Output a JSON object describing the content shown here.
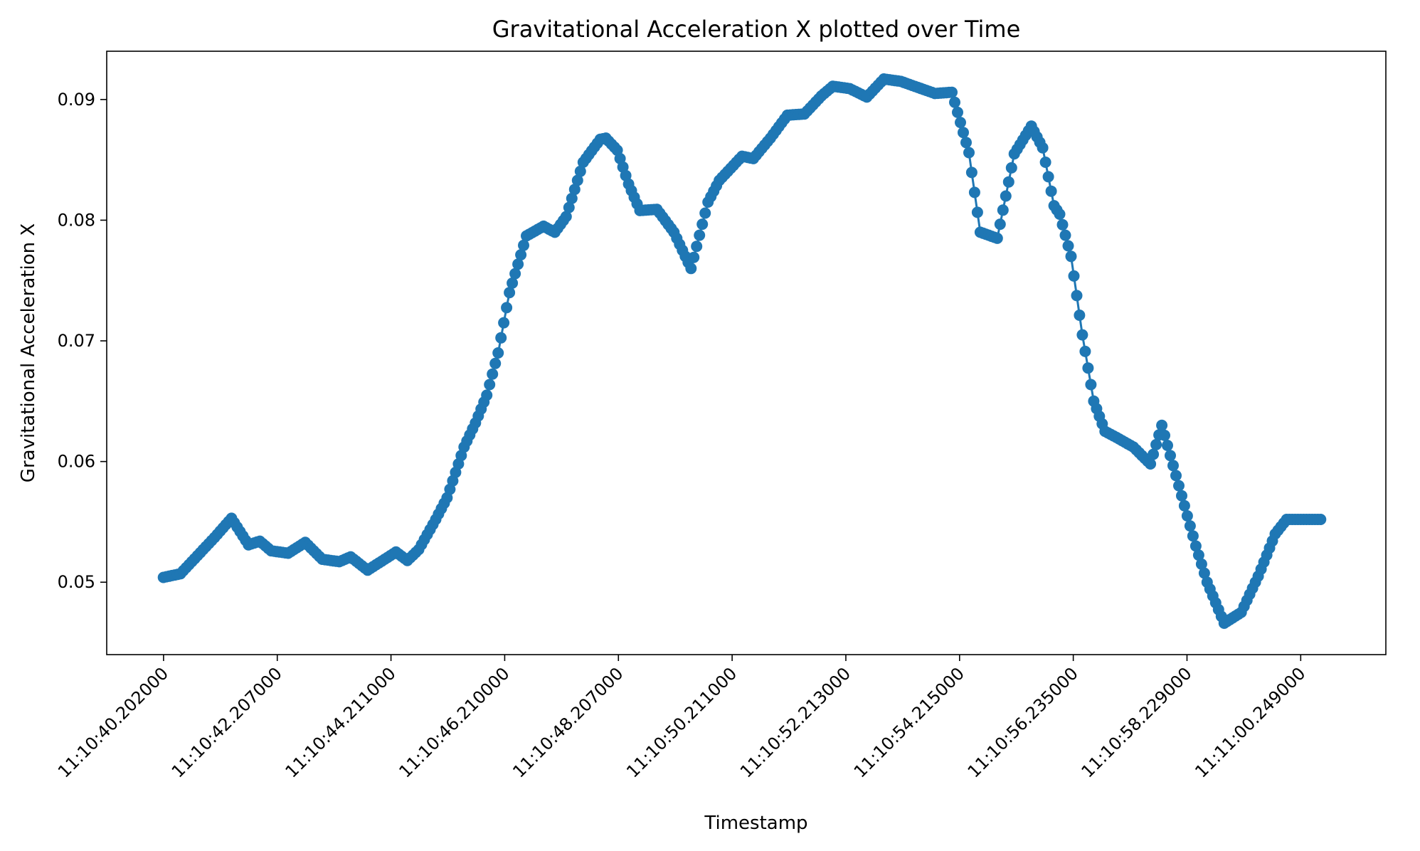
{
  "chart_data": {
    "type": "line",
    "title": "Gravitational Acceleration X plotted over Time",
    "xlabel": "Timestamp",
    "ylabel": "Gravitational Acceleration X",
    "x_ticks": [
      "11:10:40.202000",
      "11:10:42.207000",
      "11:10:44.211000",
      "11:10:46.210000",
      "11:10:48.207000",
      "11:10:50.211000",
      "11:10:52.213000",
      "11:10:54.215000",
      "11:10:56.235000",
      "11:10:58.229000",
      "11:11:00.249000"
    ],
    "y_ticks": [
      "0.05",
      "0.06",
      "0.07",
      "0.08",
      "0.09"
    ],
    "y_tick_values": [
      0.05,
      0.06,
      0.07,
      0.08,
      0.09
    ],
    "xlim_seconds": [
      39.2,
      61.75
    ],
    "ylim": [
      0.044,
      0.094
    ],
    "x_range_start": "11:10:40.202000",
    "x_range_end": "11:11:00.750000",
    "grid": false,
    "legend": "none",
    "markers": true,
    "series": [
      {
        "color": "#1f77b4",
        "x_seconds": [
          40.2,
          40.5,
          40.8,
          41.1,
          41.4,
          41.7,
          41.9,
          42.1,
          42.4,
          42.7,
          43.0,
          43.3,
          43.5,
          43.8,
          44.1,
          44.3,
          44.5,
          44.7,
          45.0,
          45.2,
          45.5,
          45.7,
          45.9,
          46.1,
          46.3,
          46.6,
          46.9,
          47.1,
          47.3,
          47.6,
          47.9,
          48.0,
          48.2,
          48.4,
          48.6,
          48.9,
          49.2,
          49.5,
          49.8,
          50.0,
          50.2,
          50.4,
          50.6,
          50.9,
          51.2,
          51.5,
          51.8,
          52.0,
          52.3,
          52.6,
          52.9,
          53.2,
          53.5,
          53.8,
          54.1,
          54.4,
          54.6,
          54.9,
          55.2,
          55.5,
          55.7,
          55.9,
          56.0,
          56.2,
          56.4,
          56.6,
          56.8,
          57.0,
          57.3,
          57.6,
          57.8,
          58.1,
          58.4,
          58.6,
          58.9,
          59.2,
          59.5,
          59.8,
          60.0,
          60.3,
          60.6
        ]
      }
    ],
    "values": [
      0.0504,
      0.0507,
      0.0522,
      0.0537,
      0.0553,
      0.0531,
      0.0534,
      0.0526,
      0.0524,
      0.0533,
      0.0519,
      0.0517,
      0.0521,
      0.051,
      0.0519,
      0.0525,
      0.0518,
      0.0527,
      0.0552,
      0.057,
      0.0612,
      0.0632,
      0.0655,
      0.069,
      0.074,
      0.0787,
      0.0795,
      0.079,
      0.0803,
      0.0848,
      0.0867,
      0.0868,
      0.0858,
      0.083,
      0.0808,
      0.0809,
      0.079,
      0.076,
      0.0815,
      0.0833,
      0.0843,
      0.0853,
      0.0851,
      0.0868,
      0.0887,
      0.0888,
      0.0903,
      0.0911,
      0.0909,
      0.0902,
      0.0917,
      0.0915,
      0.091,
      0.0905,
      0.0906,
      0.0856,
      0.079,
      0.0785,
      0.0855,
      0.0878,
      0.086,
      0.0812,
      0.0805,
      0.077,
      0.0705,
      0.065,
      0.0625,
      0.062,
      0.0612,
      0.0598,
      0.063,
      0.058,
      0.053,
      0.05,
      0.0466,
      0.0475,
      0.0505,
      0.054,
      0.0552,
      0.0552,
      0.0552
    ]
  }
}
